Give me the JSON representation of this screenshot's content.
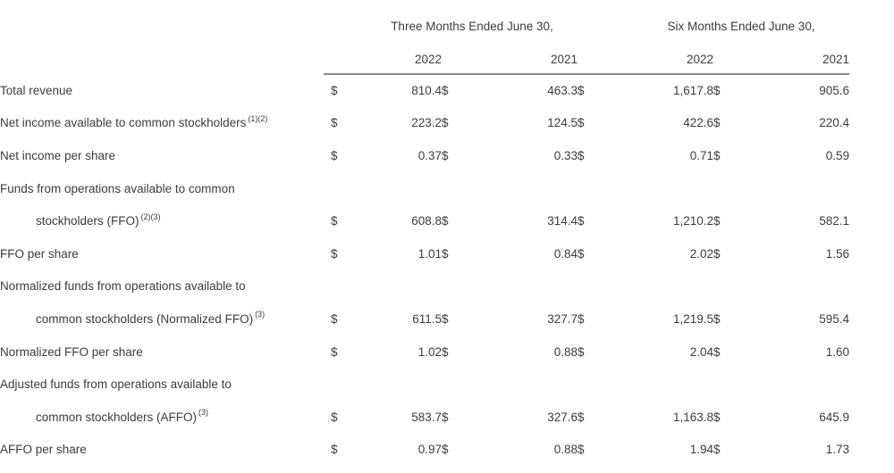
{
  "table": {
    "currency_symbol": "$",
    "col_groups": [
      {
        "label": "Three Months Ended June 30,",
        "years": [
          "2022",
          "2021"
        ]
      },
      {
        "label": "Six Months Ended June 30,",
        "years": [
          "2022",
          "2021"
        ]
      }
    ],
    "rows": [
      {
        "label": "Total revenue",
        "sup": "",
        "indent": false,
        "values": [
          "810.4",
          "463.3",
          "1,617.8",
          "905.6"
        ]
      },
      {
        "label": "Net income available to common stockholders",
        "sup": "(1)(2)",
        "indent": false,
        "values": [
          "223.2",
          "124.5",
          "422.6",
          "220.4"
        ]
      },
      {
        "label": "Net income per share",
        "sup": "",
        "indent": false,
        "values": [
          "0.37",
          "0.33",
          "0.71",
          "0.59"
        ]
      },
      {
        "label": "Funds from operations available to common",
        "sup": "",
        "indent": false,
        "values": null
      },
      {
        "label": "stockholders (FFO)",
        "sup": "(2)(3)",
        "indent": true,
        "values": [
          "608.8",
          "314.4",
          "1,210.2",
          "582.1"
        ]
      },
      {
        "label": "FFO per share",
        "sup": "",
        "indent": false,
        "values": [
          "1.01",
          "0.84",
          "2.02",
          "1.56"
        ]
      },
      {
        "label": "Normalized funds from operations available to",
        "sup": "",
        "indent": false,
        "values": null
      },
      {
        "label": "common stockholders (Normalized FFO)",
        "sup": "(3)",
        "indent": true,
        "values": [
          "611.5",
          "327.7",
          "1,219.5",
          "595.4"
        ]
      },
      {
        "label": "Normalized FFO per share",
        "sup": "",
        "indent": false,
        "values": [
          "1.02",
          "0.88",
          "2.04",
          "1.60"
        ]
      },
      {
        "label": "Adjusted funds from operations available to",
        "sup": "",
        "indent": false,
        "values": null
      },
      {
        "label": "common stockholders (AFFO)",
        "sup": "(3)",
        "indent": true,
        "values": [
          "583.7",
          "327.6",
          "1,163.8",
          "645.9"
        ]
      },
      {
        "label": "AFFO per share",
        "sup": "",
        "indent": false,
        "values": [
          "0.97",
          "0.88",
          "1.94",
          "1.73"
        ]
      }
    ],
    "colors": {
      "text": "#3c3c3c",
      "rule": "#8a8a8a",
      "background": "#ffffff"
    }
  }
}
